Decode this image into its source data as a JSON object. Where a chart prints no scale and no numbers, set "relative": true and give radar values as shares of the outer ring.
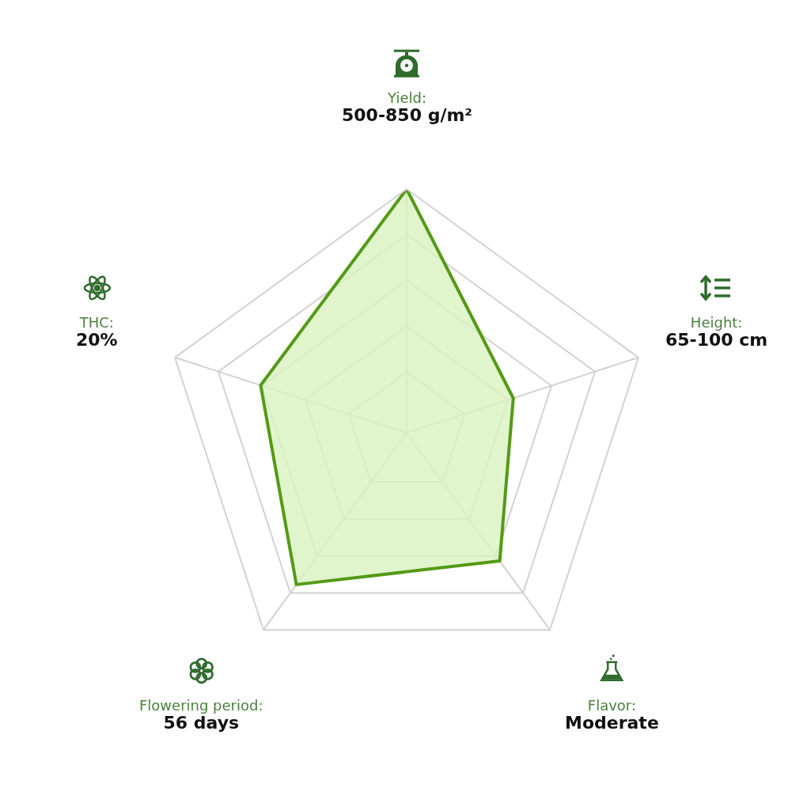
{
  "chart_data": {
    "type": "radar",
    "categories": [
      "Yield:\n500-850 g/m²",
      "Height:\n65-100 cm",
      "Flavor:\nModerate",
      "Flowering period:\n56 days",
      "THC:\n20%"
    ],
    "relative": true,
    "grid": true,
    "series": [
      {
        "color": "#559a16",
        "values": [
          1.0,
          0.46,
          0.65,
          0.77,
          0.63
        ]
      }
    ]
  }
}
